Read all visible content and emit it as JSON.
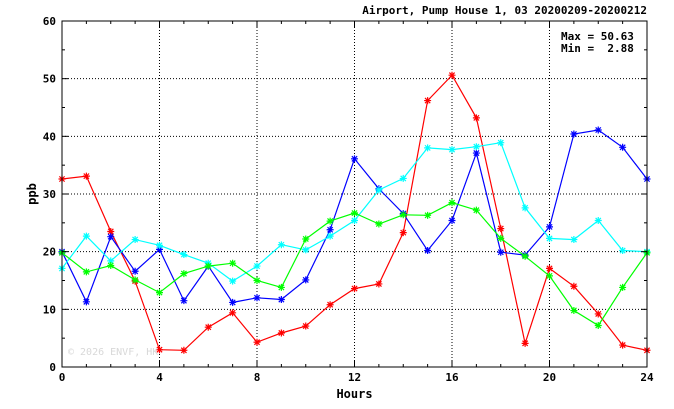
{
  "chart_data": {
    "type": "line",
    "title": "Airport, Pump House 1, 03 20200209-20200212",
    "xlabel": "Hours",
    "ylabel": "ppb",
    "xlim": [
      0,
      24
    ],
    "ylim": [
      0,
      60
    ],
    "xticks": [
      0,
      4,
      8,
      12,
      16,
      20,
      24
    ],
    "yticks": [
      0,
      10,
      20,
      30,
      40,
      50,
      60
    ],
    "grid": true,
    "stats": {
      "max_label": "Max = 50.63",
      "min_label": "Min =  2.88"
    },
    "watermark": "© 2026 ENVF, HK",
    "x": [
      0,
      1,
      2,
      3,
      4,
      5,
      6,
      7,
      8,
      9,
      10,
      11,
      12,
      13,
      14,
      15,
      16,
      17,
      18,
      19,
      20,
      21,
      22,
      23,
      24
    ],
    "series": [
      {
        "color": "#ff0000",
        "values": [
          32.6,
          33.1,
          23.5,
          14.9,
          3.0,
          2.9,
          6.9,
          9.4,
          4.3,
          5.9,
          7.1,
          10.8,
          13.6,
          14.4,
          23.3,
          46.2,
          50.6,
          43.2,
          24.0,
          4.1,
          17.1,
          14.0,
          9.2,
          3.8,
          2.9
        ]
      },
      {
        "color": "#0000ff",
        "values": [
          20.0,
          11.3,
          22.6,
          16.6,
          20.4,
          11.5,
          17.5,
          11.2,
          12.0,
          11.7,
          15.1,
          23.8,
          36.1,
          30.9,
          26.6,
          20.2,
          25.4,
          37.1,
          19.9,
          19.4,
          24.3,
          40.4,
          41.1,
          38.1,
          32.6
        ]
      },
      {
        "color": "#00ffff",
        "values": [
          17.1,
          22.7,
          18.4,
          22.1,
          21.1,
          19.5,
          18.0,
          14.9,
          17.5,
          21.2,
          20.3,
          22.7,
          25.4,
          30.7,
          32.7,
          38.0,
          37.7,
          38.2,
          38.9,
          27.6,
          22.3,
          22.1,
          25.4,
          20.2,
          20.0
        ]
      },
      {
        "color": "#00ff00",
        "values": [
          19.8,
          16.5,
          17.6,
          15.1,
          12.9,
          16.2,
          17.5,
          18.0,
          15.0,
          13.8,
          22.2,
          25.3,
          26.7,
          24.8,
          26.4,
          26.3,
          28.5,
          27.2,
          22.3,
          19.2,
          15.8,
          9.8,
          7.2,
          13.8,
          19.8
        ]
      }
    ]
  }
}
